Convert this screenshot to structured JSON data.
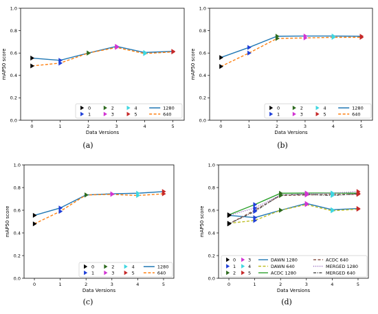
{
  "colors": {
    "series_1280": "#1f77b4",
    "series_640": "#ff7f0e",
    "dawn_1280": "#1f77b4",
    "dawn_640": "#bcbd22",
    "acdc_1280": "#2ca02c",
    "acdc_640": "#8c564b",
    "merged_1280": "#9467bd",
    "merged_640": "#555555",
    "v0": "#000000",
    "v1": "#1f3fd8",
    "v2": "#2e6b1f",
    "v3": "#d233d2",
    "v4": "#3fd6e0",
    "v5": "#c62828"
  },
  "chart_data": [
    {
      "type": "line",
      "panel_label": "(a)",
      "xlabel": "Data Versions",
      "ylabel": "mAP50 score",
      "x": [
        0,
        1,
        2,
        3,
        4,
        5
      ],
      "xticks": [
        "0",
        "1",
        "2",
        "3",
        "4",
        "5"
      ],
      "yticks": [
        "0.0",
        "0.2",
        "0.4",
        "0.6",
        "0.8",
        "1.0"
      ],
      "xlim": [
        -0.4,
        5.4
      ],
      "ylim": [
        0,
        1
      ],
      "grid": false,
      "legend_position": "lower-right",
      "series": [
        {
          "name": "1280",
          "color_key": "series_1280",
          "dash": false,
          "values": [
            0.555,
            0.535,
            0.6,
            0.66,
            0.605,
            0.615
          ]
        },
        {
          "name": "640",
          "color_key": "series_640",
          "dash": true,
          "values": [
            0.485,
            0.51,
            0.6,
            0.65,
            0.595,
            0.61
          ]
        }
      ],
      "markers": [
        {
          "name": "0",
          "color_key": "v0",
          "x": 0,
          "points": [
            0.555,
            0.485
          ]
        },
        {
          "name": "1",
          "color_key": "v1",
          "x": 1,
          "points": [
            0.535,
            0.51
          ]
        },
        {
          "name": "2",
          "color_key": "v2",
          "x": 2,
          "points": [
            0.6,
            0.6
          ]
        },
        {
          "name": "3",
          "color_key": "v3",
          "x": 3,
          "points": [
            0.66,
            0.65
          ]
        },
        {
          "name": "4",
          "color_key": "v4",
          "x": 4,
          "points": [
            0.605,
            0.595
          ]
        },
        {
          "name": "5",
          "color_key": "v5",
          "x": 5,
          "points": [
            0.615,
            0.61
          ]
        }
      ]
    },
    {
      "type": "line",
      "panel_label": "(b)",
      "xlabel": "Data Versions",
      "ylabel": "mAP50 score",
      "x": [
        0,
        1,
        2,
        3,
        4,
        5
      ],
      "xticks": [
        "0",
        "1",
        "2",
        "3",
        "4",
        "5"
      ],
      "yticks": [
        "0.0",
        "0.2",
        "0.4",
        "0.6",
        "0.8",
        "1.0"
      ],
      "xlim": [
        -0.4,
        5.4
      ],
      "ylim": [
        0,
        1
      ],
      "grid": false,
      "legend_position": "lower-right",
      "series": [
        {
          "name": "1280",
          "color_key": "series_1280",
          "dash": false,
          "values": [
            0.56,
            0.65,
            0.75,
            0.752,
            0.752,
            0.75
          ]
        },
        {
          "name": "640",
          "color_key": "series_640",
          "dash": true,
          "values": [
            0.48,
            0.6,
            0.73,
            0.735,
            0.74,
            0.74
          ]
        }
      ],
      "markers": [
        {
          "name": "0",
          "color_key": "v0",
          "x": 0,
          "points": [
            0.56,
            0.48
          ]
        },
        {
          "name": "1",
          "color_key": "v1",
          "x": 1,
          "points": [
            0.65,
            0.6
          ]
        },
        {
          "name": "2",
          "color_key": "v2",
          "x": 2,
          "points": [
            0.75,
            0.73
          ]
        },
        {
          "name": "3",
          "color_key": "v3",
          "x": 3,
          "points": [
            0.752,
            0.735
          ]
        },
        {
          "name": "4",
          "color_key": "v4",
          "x": 4,
          "points": [
            0.752,
            0.74
          ]
        },
        {
          "name": "5",
          "color_key": "v5",
          "x": 5,
          "points": [
            0.75,
            0.74
          ]
        }
      ]
    },
    {
      "type": "line",
      "panel_label": "(c)",
      "xlabel": "Data Versions",
      "ylabel": "mAP50 score",
      "x": [
        0,
        1,
        2,
        3,
        4,
        5
      ],
      "xticks": [
        "0",
        "1",
        "2",
        "3",
        "4",
        "5"
      ],
      "yticks": [
        "0.0",
        "0.2",
        "0.4",
        "0.6",
        "0.8",
        "1.0"
      ],
      "xlim": [
        -0.4,
        5.4
      ],
      "ylim": [
        0,
        1
      ],
      "grid": false,
      "legend_position": "lower-right",
      "series": [
        {
          "name": "1280",
          "color_key": "series_1280",
          "dash": false,
          "values": [
            0.555,
            0.62,
            0.735,
            0.745,
            0.75,
            0.765
          ]
        },
        {
          "name": "640",
          "color_key": "series_640",
          "dash": true,
          "values": [
            0.48,
            0.59,
            0.735,
            0.74,
            0.73,
            0.745
          ]
        }
      ],
      "markers": [
        {
          "name": "0",
          "color_key": "v0",
          "x": 0,
          "points": [
            0.555,
            0.48
          ]
        },
        {
          "name": "1",
          "color_key": "v1",
          "x": 1,
          "points": [
            0.62,
            0.59
          ]
        },
        {
          "name": "2",
          "color_key": "v2",
          "x": 2,
          "points": [
            0.735,
            0.735
          ]
        },
        {
          "name": "3",
          "color_key": "v3",
          "x": 3,
          "points": [
            0.745,
            0.74
          ]
        },
        {
          "name": "4",
          "color_key": "v4",
          "x": 4,
          "points": [
            0.75,
            0.73
          ]
        },
        {
          "name": "5",
          "color_key": "v5",
          "x": 5,
          "points": [
            0.765,
            0.745
          ]
        }
      ]
    },
    {
      "type": "line",
      "panel_label": "(d)",
      "xlabel": "Data Versions",
      "ylabel": "mAP50 score",
      "x": [
        0,
        1,
        2,
        3,
        4,
        5
      ],
      "xticks": [
        "0",
        "1",
        "2",
        "3",
        "4",
        "5"
      ],
      "yticks": [
        "0.0",
        "0.2",
        "0.4",
        "0.6",
        "0.8",
        "1.0"
      ],
      "xlim": [
        -0.4,
        5.4
      ],
      "ylim": [
        0,
        1
      ],
      "grid": false,
      "legend_position": "lower-right",
      "series": [
        {
          "name": "DAWN 1280",
          "color_key": "dawn_1280",
          "dash": false,
          "values": [
            0.555,
            0.535,
            0.6,
            0.66,
            0.605,
            0.615
          ]
        },
        {
          "name": "DAWN 640",
          "color_key": "dawn_640",
          "dash": true,
          "values": [
            0.485,
            0.51,
            0.6,
            0.65,
            0.595,
            0.61
          ]
        },
        {
          "name": "ACDC 1280",
          "color_key": "acdc_1280",
          "dash": false,
          "values": [
            0.56,
            0.65,
            0.75,
            0.752,
            0.752,
            0.75
          ]
        },
        {
          "name": "ACDC 640",
          "color_key": "acdc_640",
          "dash": true,
          "values": [
            0.48,
            0.6,
            0.73,
            0.735,
            0.74,
            0.74
          ]
        },
        {
          "name": "MERGED 1280",
          "color_key": "merged_1280",
          "dash": "dot",
          "values": [
            0.555,
            0.62,
            0.735,
            0.745,
            0.75,
            0.765
          ]
        },
        {
          "name": "MERGED 640",
          "color_key": "merged_640",
          "dash": "dashdot",
          "values": [
            0.48,
            0.59,
            0.735,
            0.74,
            0.73,
            0.745
          ]
        }
      ],
      "markers": [
        {
          "name": "0",
          "color_key": "v0",
          "x": 0,
          "points": [
            0.555,
            0.485,
            0.56,
            0.48,
            0.555,
            0.48
          ]
        },
        {
          "name": "1",
          "color_key": "v1",
          "x": 1,
          "points": [
            0.535,
            0.51,
            0.65,
            0.6,
            0.62,
            0.59
          ]
        },
        {
          "name": "2",
          "color_key": "v2",
          "x": 2,
          "points": [
            0.6,
            0.6,
            0.75,
            0.73,
            0.735,
            0.735
          ]
        },
        {
          "name": "3",
          "color_key": "v3",
          "x": 3,
          "points": [
            0.66,
            0.65,
            0.752,
            0.735,
            0.745,
            0.74
          ]
        },
        {
          "name": "4",
          "color_key": "v4",
          "x": 4,
          "points": [
            0.605,
            0.595,
            0.752,
            0.74,
            0.75,
            0.73
          ]
        },
        {
          "name": "5",
          "color_key": "v5",
          "x": 5,
          "points": [
            0.615,
            0.61,
            0.75,
            0.74,
            0.765,
            0.745
          ]
        }
      ]
    }
  ]
}
